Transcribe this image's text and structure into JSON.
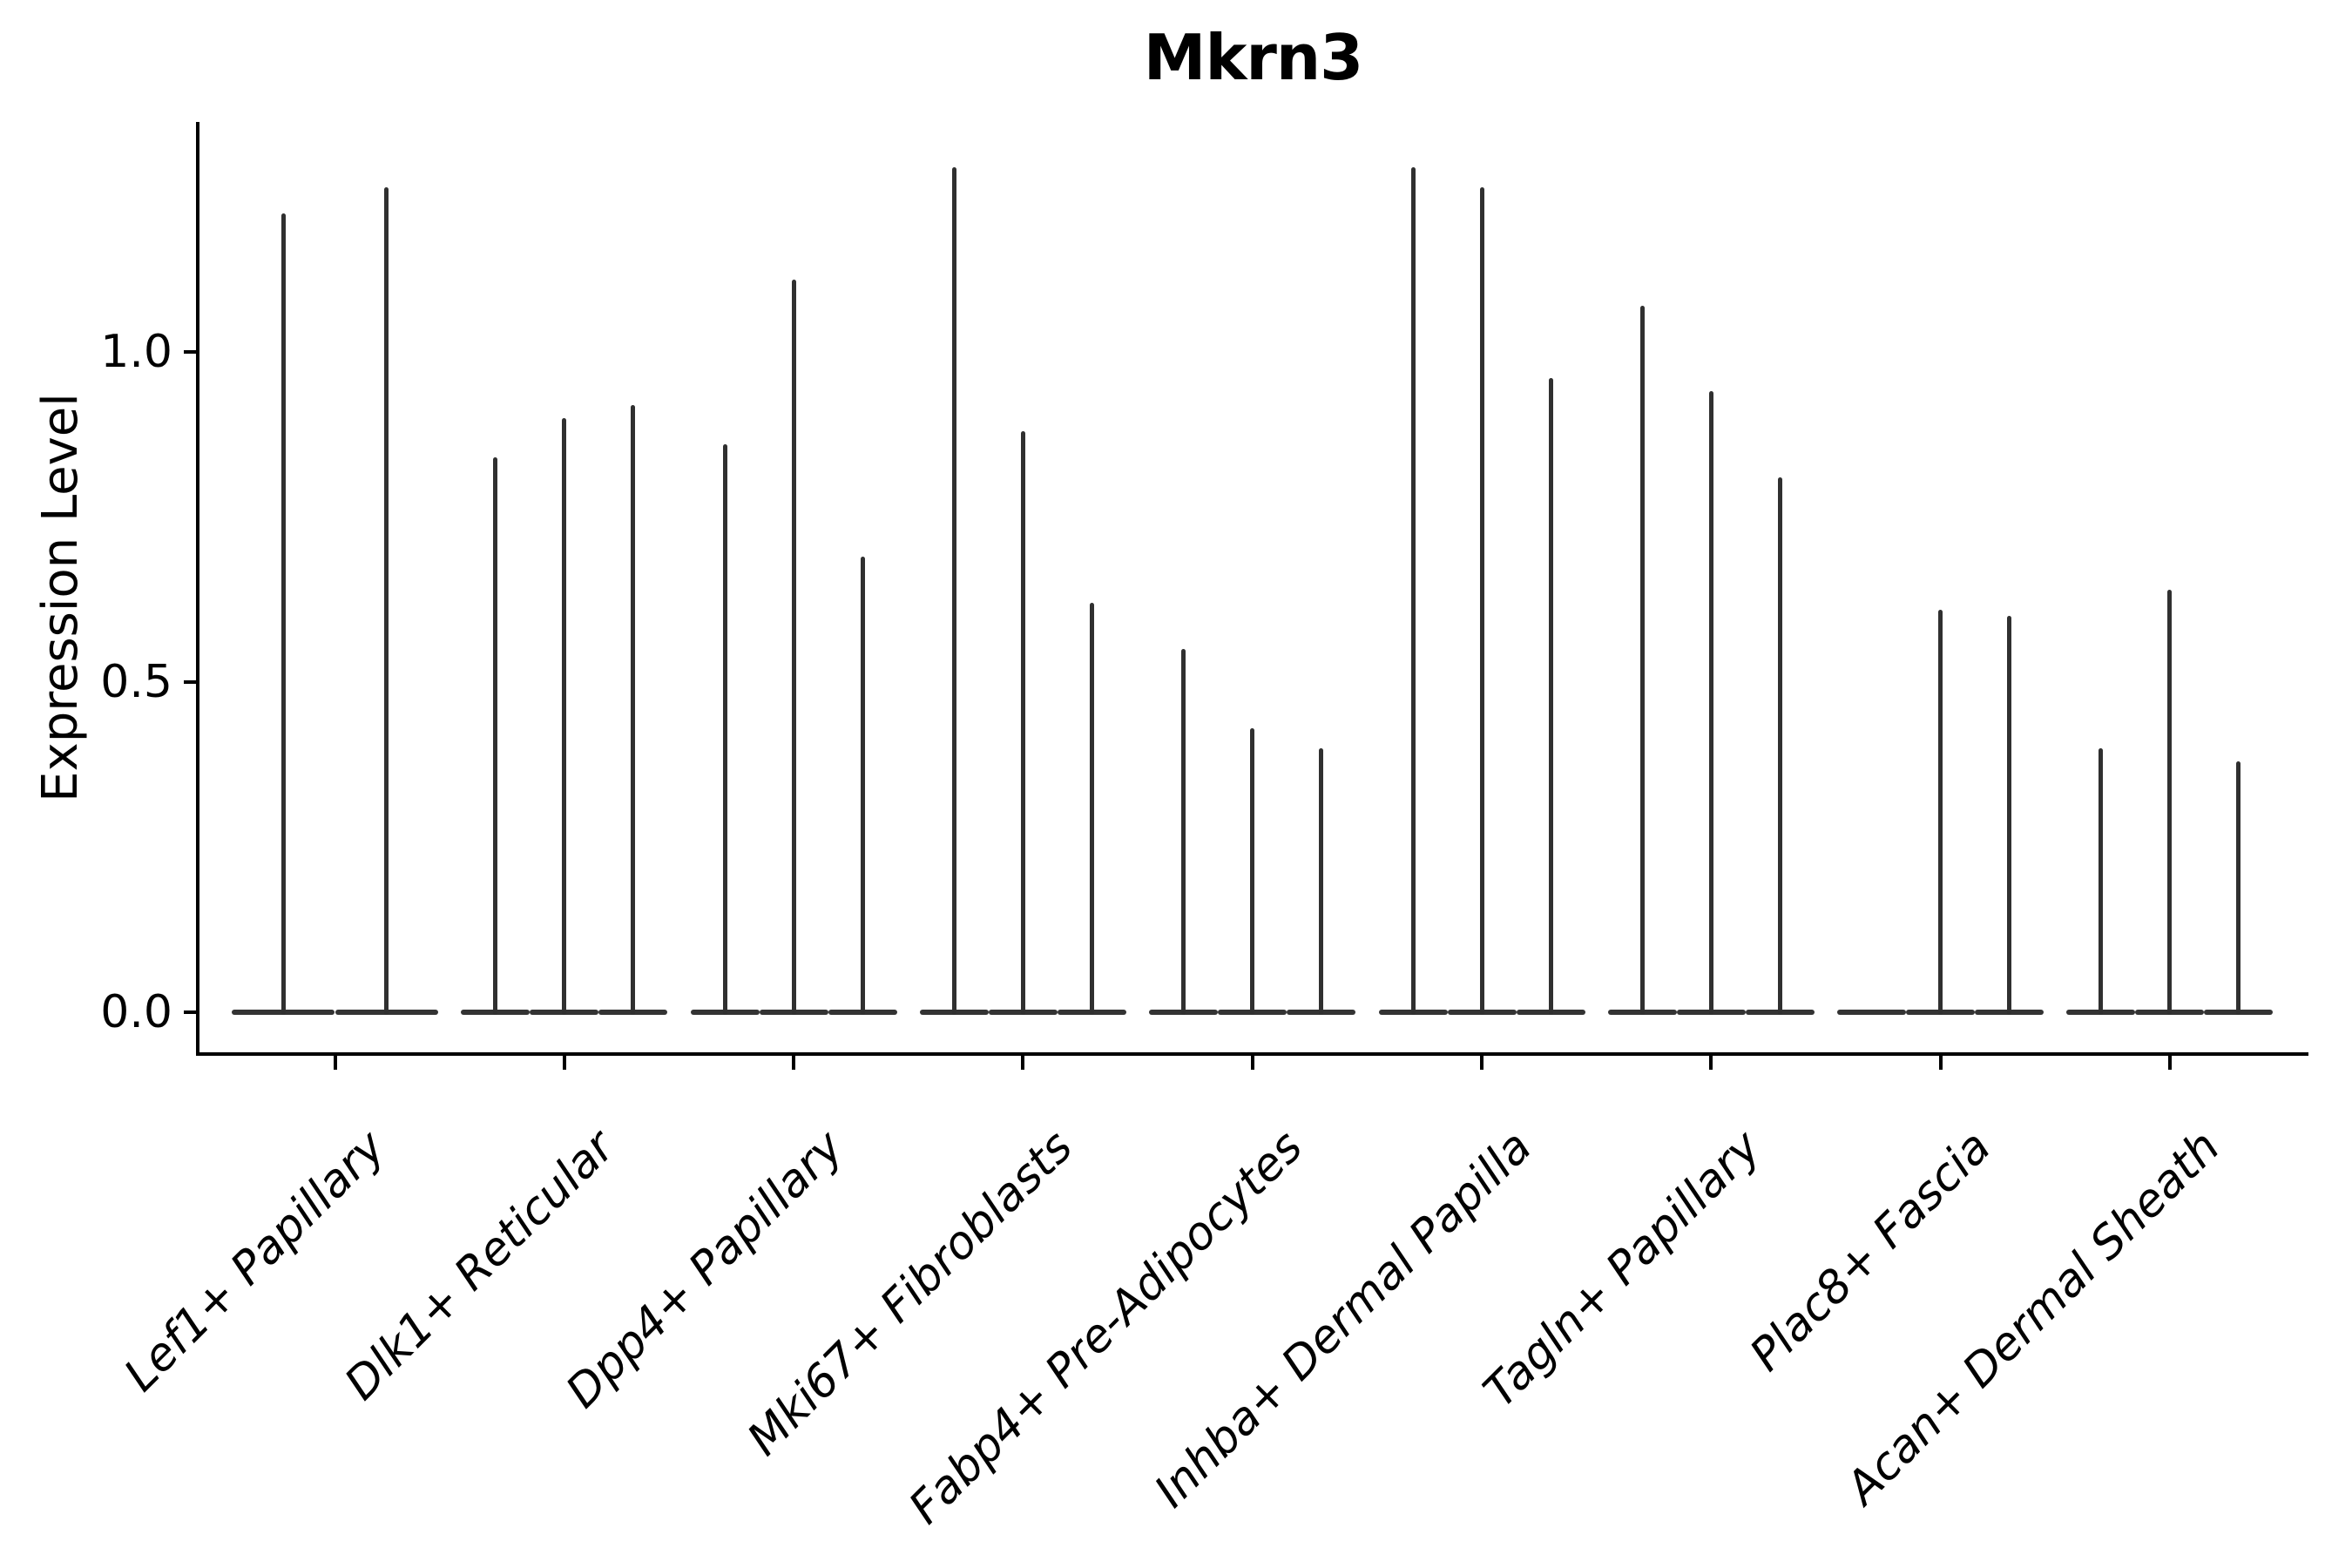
{
  "title": "Mkrn3",
  "y_axis": {
    "label": "Expression Level",
    "ticks": [
      {
        "label": "0.0",
        "value": 0.0
      },
      {
        "label": "0.5",
        "value": 0.5
      },
      {
        "label": "1.0",
        "value": 1.0
      }
    ]
  },
  "x_axis": {
    "categories": [
      "Lef1+ Papillary",
      "Dlk1+ Reticular",
      "Dpp4+ Papillary",
      "Mki67+ Fibroblasts",
      "Fabp4+ Pre-Adipocytes",
      "Inhba+ Dermal Papilla",
      "Tagln+ Papillary",
      "Plac8+ Fascia",
      "Acan+ Dermal Sheath"
    ]
  },
  "chart_data": {
    "type": "violin",
    "title": "Mkrn3",
    "xlabel": "",
    "ylabel": "Expression Level",
    "ylim": [
      -0.06,
      1.35
    ],
    "grid": false,
    "legend": null,
    "style": "single-cell gene expression violin plot; each category holds 2-3 extremely thin spike-like violins with a wide flat base at 0; a peak of 0 means a completely flat violin at the baseline",
    "categories": [
      "Lef1+ Papillary",
      "Dlk1+ Reticular",
      "Dpp4+ Papillary",
      "Mki67+ Fibroblasts",
      "Fabp4+ Pre-Adipocytes",
      "Inhba+ Dermal Papilla",
      "Tagln+ Papillary",
      "Plac8+ Fascia",
      "Acan+ Dermal Sheath"
    ],
    "violins": [
      {
        "category": "Lef1+ Papillary",
        "spike_peaks": [
          1.21,
          1.25
        ]
      },
      {
        "category": "Dlk1+ Reticular",
        "spike_peaks": [
          0.84,
          0.9,
          0.92
        ]
      },
      {
        "category": "Dpp4+ Papillary",
        "spike_peaks": [
          0.86,
          1.11,
          0.69
        ]
      },
      {
        "category": "Mki67+ Fibroblasts",
        "spike_peaks": [
          1.28,
          0.88,
          0.62
        ]
      },
      {
        "category": "Fabp4+ Pre-Adipocytes",
        "spike_peaks": [
          0.55,
          0.43,
          0.4
        ]
      },
      {
        "category": "Inhba+ Dermal Papilla",
        "spike_peaks": [
          1.28,
          1.25,
          0.96
        ]
      },
      {
        "category": "Tagln+ Papillary",
        "spike_peaks": [
          1.07,
          0.94,
          0.81
        ]
      },
      {
        "category": "Plac8+ Fascia",
        "spike_peaks": [
          0.0,
          0.61,
          0.6
        ]
      },
      {
        "category": "Acan+ Dermal Sheath",
        "spike_peaks": [
          0.4,
          0.64,
          0.38
        ]
      }
    ],
    "colors": {
      "violin": "#303030",
      "axis": "#000000",
      "background": "#ffffff"
    }
  }
}
